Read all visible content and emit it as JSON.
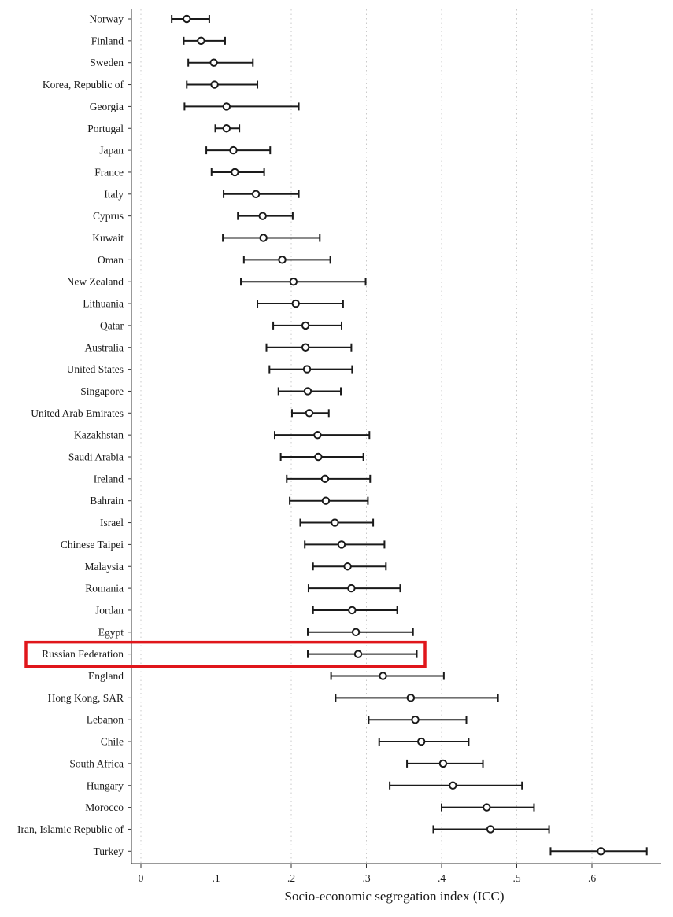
{
  "chart_data": {
    "type": "scatter",
    "subtype": "dot-and-whisker",
    "xlabel": "Socio-economic segregation index (ICC)",
    "ylabel": "",
    "xlim": [
      0,
      0.68
    ],
    "xticks": [
      {
        "value": 0,
        "label": "0"
      },
      {
        "value": 0.1,
        "label": ".1"
      },
      {
        "value": 0.2,
        "label": ".2"
      },
      {
        "value": 0.3,
        "label": ".3"
      },
      {
        "value": 0.4,
        "label": ".4"
      },
      {
        "value": 0.5,
        "label": ".5"
      },
      {
        "value": 0.6,
        "label": ".6"
      }
    ],
    "grid": "vertical dotted",
    "highlight": {
      "country": "Russian Federation",
      "color": "#e0161b"
    },
    "series": [
      {
        "country": "Norway",
        "value": 0.061,
        "low": 0.041,
        "high": 0.091
      },
      {
        "country": "Finland",
        "value": 0.08,
        "low": 0.057,
        "high": 0.112
      },
      {
        "country": "Sweden",
        "value": 0.097,
        "low": 0.063,
        "high": 0.149
      },
      {
        "country": "Korea, Republic of",
        "value": 0.098,
        "low": 0.061,
        "high": 0.155
      },
      {
        "country": "Georgia",
        "value": 0.114,
        "low": 0.058,
        "high": 0.21
      },
      {
        "country": "Portugal",
        "value": 0.114,
        "low": 0.099,
        "high": 0.131
      },
      {
        "country": "Japan",
        "value": 0.123,
        "low": 0.087,
        "high": 0.172
      },
      {
        "country": "France",
        "value": 0.125,
        "low": 0.094,
        "high": 0.164
      },
      {
        "country": "Italy",
        "value": 0.153,
        "low": 0.11,
        "high": 0.21
      },
      {
        "country": "Cyprus",
        "value": 0.162,
        "low": 0.129,
        "high": 0.202
      },
      {
        "country": "Kuwait",
        "value": 0.163,
        "low": 0.109,
        "high": 0.238
      },
      {
        "country": "Oman",
        "value": 0.188,
        "low": 0.137,
        "high": 0.252
      },
      {
        "country": "New Zealand",
        "value": 0.203,
        "low": 0.133,
        "high": 0.299
      },
      {
        "country": "Lithuania",
        "value": 0.206,
        "low": 0.155,
        "high": 0.269
      },
      {
        "country": "Qatar",
        "value": 0.219,
        "low": 0.176,
        "high": 0.267
      },
      {
        "country": "Australia",
        "value": 0.219,
        "low": 0.167,
        "high": 0.28
      },
      {
        "country": "United States",
        "value": 0.221,
        "low": 0.171,
        "high": 0.281
      },
      {
        "country": "Singapore",
        "value": 0.222,
        "low": 0.183,
        "high": 0.266
      },
      {
        "country": "United Arab Emirates",
        "value": 0.224,
        "low": 0.201,
        "high": 0.25
      },
      {
        "country": "Kazakhstan",
        "value": 0.235,
        "low": 0.178,
        "high": 0.304
      },
      {
        "country": "Saudi Arabia",
        "value": 0.236,
        "low": 0.186,
        "high": 0.296
      },
      {
        "country": "Ireland",
        "value": 0.245,
        "low": 0.194,
        "high": 0.305
      },
      {
        "country": "Bahrain",
        "value": 0.246,
        "low": 0.198,
        "high": 0.302
      },
      {
        "country": "Israel",
        "value": 0.258,
        "low": 0.212,
        "high": 0.309
      },
      {
        "country": "Chinese Taipei",
        "value": 0.267,
        "low": 0.218,
        "high": 0.324
      },
      {
        "country": "Malaysia",
        "value": 0.275,
        "low": 0.229,
        "high": 0.326
      },
      {
        "country": "Romania",
        "value": 0.28,
        "low": 0.223,
        "high": 0.345
      },
      {
        "country": "Jordan",
        "value": 0.281,
        "low": 0.229,
        "high": 0.341
      },
      {
        "country": "Egypt",
        "value": 0.286,
        "low": 0.222,
        "high": 0.362
      },
      {
        "country": "Russian Federation",
        "value": 0.289,
        "low": 0.222,
        "high": 0.367
      },
      {
        "country": "England",
        "value": 0.322,
        "low": 0.253,
        "high": 0.403
      },
      {
        "country": "Hong Kong, SAR",
        "value": 0.359,
        "low": 0.259,
        "high": 0.475
      },
      {
        "country": "Lebanon",
        "value": 0.365,
        "low": 0.303,
        "high": 0.433
      },
      {
        "country": "Chile",
        "value": 0.373,
        "low": 0.317,
        "high": 0.436
      },
      {
        "country": "South Africa",
        "value": 0.402,
        "low": 0.354,
        "high": 0.455
      },
      {
        "country": "Hungary",
        "value": 0.415,
        "low": 0.331,
        "high": 0.507
      },
      {
        "country": "Morocco",
        "value": 0.46,
        "low": 0.4,
        "high": 0.523
      },
      {
        "country": "Iran, Islamic Republic of",
        "value": 0.465,
        "low": 0.389,
        "high": 0.543
      },
      {
        "country": "Turkey",
        "value": 0.612,
        "low": 0.545,
        "high": 0.673
      }
    ]
  }
}
